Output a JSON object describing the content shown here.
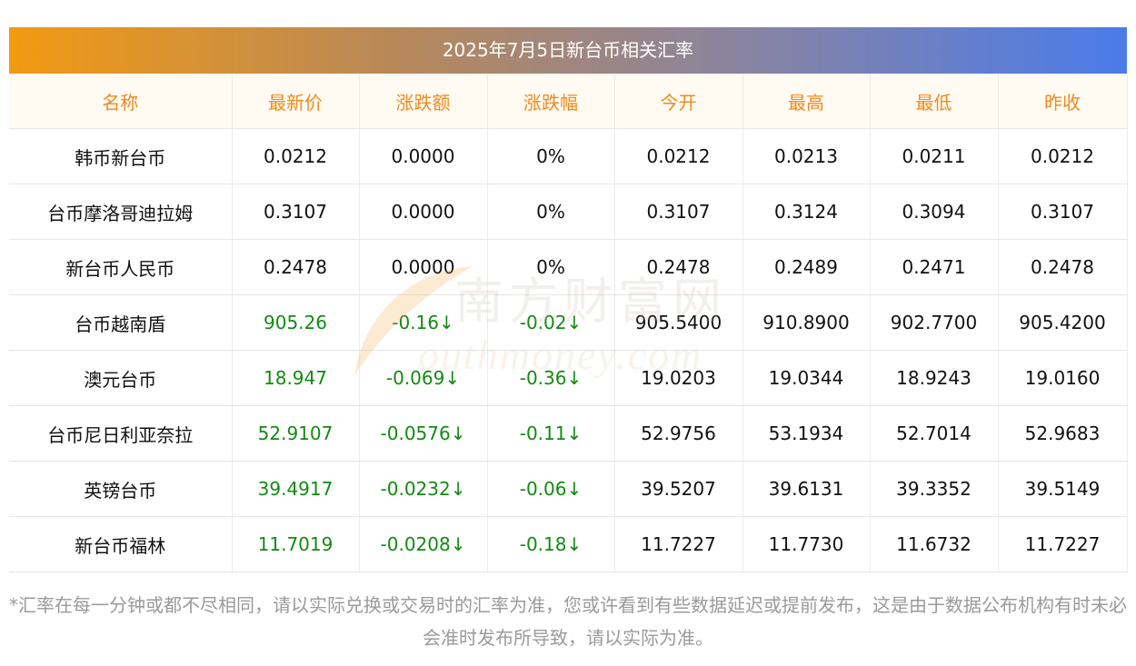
{
  "title": "2025年7月5日新台币相关汇率",
  "headers": [
    "名称",
    "最新价",
    "涨跌额",
    "涨跌幅",
    "今开",
    "最高",
    "最低",
    "昨收"
  ],
  "rows": [
    {
      "name": "韩币新台币",
      "latest": "0.0212",
      "change": "0.0000",
      "pct": "0%",
      "open": "0.0212",
      "high": "0.0213",
      "low": "0.0211",
      "prev": "0.0212",
      "dir": "flat"
    },
    {
      "name": "台币摩洛哥迪拉姆",
      "latest": "0.3107",
      "change": "0.0000",
      "pct": "0%",
      "open": "0.3107",
      "high": "0.3124",
      "low": "0.3094",
      "prev": "0.3107",
      "dir": "flat"
    },
    {
      "name": "新台币人民币",
      "latest": "0.2478",
      "change": "0.0000",
      "pct": "0%",
      "open": "0.2478",
      "high": "0.2489",
      "low": "0.2471",
      "prev": "0.2478",
      "dir": "flat"
    },
    {
      "name": "台币越南盾",
      "latest": "905.26",
      "change": "-0.16↓",
      "pct": "-0.02↓",
      "open": "905.5400",
      "high": "910.8900",
      "low": "902.7700",
      "prev": "905.4200",
      "dir": "down"
    },
    {
      "name": "澳元台币",
      "latest": "18.947",
      "change": "-0.069↓",
      "pct": "-0.36↓",
      "open": "19.0203",
      "high": "19.0344",
      "low": "18.9243",
      "prev": "19.0160",
      "dir": "down"
    },
    {
      "name": "台币尼日利亚奈拉",
      "latest": "52.9107",
      "change": "-0.0576↓",
      "pct": "-0.11↓",
      "open": "52.9756",
      "high": "53.1934",
      "low": "52.7014",
      "prev": "52.9683",
      "dir": "down"
    },
    {
      "name": "英镑台币",
      "latest": "39.4917",
      "change": "-0.0232↓",
      "pct": "-0.06↓",
      "open": "39.5207",
      "high": "39.6131",
      "low": "39.3352",
      "prev": "39.5149",
      "dir": "down"
    },
    {
      "name": "新台币福林",
      "latest": "11.7019",
      "change": "-0.0208↓",
      "pct": "-0.18↓",
      "open": "11.7227",
      "high": "11.7730",
      "low": "11.6732",
      "prev": "11.7227",
      "dir": "down"
    }
  ],
  "watermark": {
    "cn": "南方财富网",
    "en": "outhmoney.com"
  },
  "footnote": "*汇率在每一分钟或都不尽相同，请以实际兑换或交易时的汇率为准，您或许看到有些数据延迟或提前发布，这是由于数据公布机构有时未必会准时发布所导致，请以实际为准。",
  "colors": {
    "header_text": "#f08a1c",
    "down": "#138a13",
    "title_start": "#f29a12",
    "title_end": "#4a7bea"
  }
}
